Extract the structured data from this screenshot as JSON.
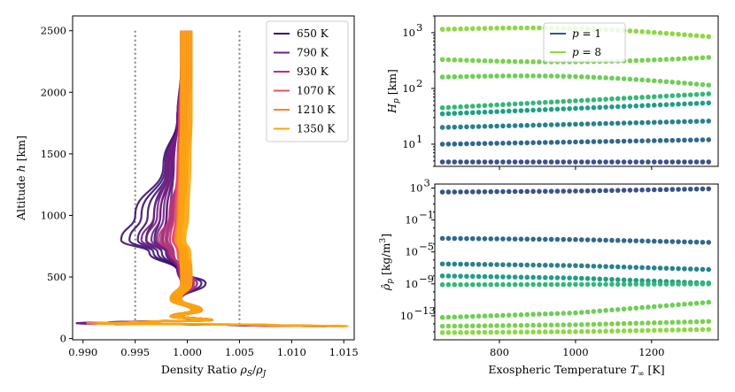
{
  "chart_data": [
    {
      "type": "line",
      "xlabel": "Density Ratio ρ_S/ρ_J",
      "ylabel": "Altitude h [km]",
      "xlim": [
        0.989,
        1.016
      ],
      "ylim": [
        -10,
        2620
      ],
      "xticks": [
        "0.990",
        "0.995",
        "1.000",
        "1.005",
        "1.010",
        "1.015"
      ],
      "yticks": [
        "0",
        "500",
        "1000",
        "1500",
        "2000",
        "2500"
      ],
      "reference_lines_x": [
        0.995,
        1.005
      ],
      "legend": {
        "placement": "top-right",
        "entries": [
          "650 K",
          "790 K",
          "930 K",
          "1070 K",
          "1210 K",
          "1350 K"
        ]
      },
      "series": [
        {
          "name": "650 K",
          "color": "#3b0f70",
          "spread": 1.0,
          "points": [
            [
              1.0,
              2500
            ],
            [
              1.0,
              2200
            ],
            [
              0.999,
              1800
            ],
            [
              0.998,
              1400
            ],
            [
              0.996,
              1000
            ],
            [
              0.995,
              800
            ],
            [
              0.997,
              700
            ],
            [
              0.999,
              550
            ],
            [
              1.001,
              450
            ],
            [
              0.999,
              320
            ],
            [
              1.001,
              230
            ],
            [
              0.999,
              180
            ],
            [
              1.002,
              150
            ],
            [
              0.993,
              130
            ],
            [
              0.99,
              125
            ],
            [
              1.005,
              110
            ],
            [
              1.012,
              100
            ]
          ]
        },
        {
          "name": "790 K",
          "color": "#711f81",
          "spread": 0.85,
          "points": [
            [
              1.0,
              2500
            ],
            [
              1.0,
              2200
            ],
            [
              0.999,
              1800
            ],
            [
              0.998,
              1400
            ],
            [
              0.997,
              1000
            ],
            [
              0.996,
              800
            ],
            [
              0.998,
              700
            ],
            [
              0.999,
              550
            ],
            [
              1.0,
              450
            ],
            [
              0.999,
              320
            ],
            [
              1.001,
              230
            ],
            [
              0.999,
              180
            ],
            [
              1.002,
              150
            ],
            [
              0.994,
              130
            ],
            [
              0.99,
              125
            ],
            [
              1.006,
              110
            ],
            [
              1.013,
              100
            ]
          ]
        },
        {
          "name": "930 K",
          "color": "#b5367a",
          "spread": 0.7,
          "points": [
            [
              1.0,
              2500
            ],
            [
              1.0,
              2200
            ],
            [
              0.9995,
              1800
            ],
            [
              0.999,
              1400
            ],
            [
              0.998,
              1000
            ],
            [
              0.997,
              800
            ],
            [
              0.998,
              700
            ],
            [
              0.9995,
              550
            ],
            [
              1.0005,
              450
            ],
            [
              0.999,
              320
            ],
            [
              1.001,
              230
            ],
            [
              0.999,
              180
            ],
            [
              1.002,
              150
            ],
            [
              0.994,
              130
            ],
            [
              0.991,
              125
            ],
            [
              1.006,
              110
            ],
            [
              1.013,
              100
            ]
          ]
        },
        {
          "name": "1070 K",
          "color": "#e55064",
          "spread": 0.55,
          "points": [
            [
              1.0,
              2500
            ],
            [
              1.0,
              2200
            ],
            [
              0.9995,
              1800
            ],
            [
              0.999,
              1400
            ],
            [
              0.9985,
              1000
            ],
            [
              0.998,
              800
            ],
            [
              0.999,
              700
            ],
            [
              1.0,
              550
            ],
            [
              1.0,
              450
            ],
            [
              0.999,
              320
            ],
            [
              1.001,
              230
            ],
            [
              0.999,
              180
            ],
            [
              1.002,
              150
            ],
            [
              0.995,
              130
            ],
            [
              0.991,
              125
            ],
            [
              1.007,
              110
            ],
            [
              1.014,
              100
            ]
          ]
        },
        {
          "name": "1210 K",
          "color": "#f7813d",
          "spread": 0.4,
          "points": [
            [
              1.0,
              2500
            ],
            [
              1.0,
              2200
            ],
            [
              1.0,
              1800
            ],
            [
              0.9995,
              1400
            ],
            [
              0.999,
              1000
            ],
            [
              0.9985,
              800
            ],
            [
              0.9995,
              700
            ],
            [
              1.0,
              550
            ],
            [
              1.0,
              450
            ],
            [
              0.999,
              320
            ],
            [
              1.001,
              230
            ],
            [
              0.999,
              180
            ],
            [
              1.002,
              150
            ],
            [
              0.995,
              130
            ],
            [
              0.991,
              125
            ],
            [
              1.008,
              110
            ],
            [
              1.015,
              100
            ]
          ]
        },
        {
          "name": "1350 K",
          "color": "#fca50a",
          "spread": 0.25,
          "points": [
            [
              1.0,
              2500
            ],
            [
              1.0,
              2200
            ],
            [
              1.0,
              1800
            ],
            [
              0.9998,
              1400
            ],
            [
              0.9995,
              1000
            ],
            [
              0.999,
              800
            ],
            [
              0.9998,
              700
            ],
            [
              1.0,
              550
            ],
            [
              1.0,
              450
            ],
            [
              0.999,
              320
            ],
            [
              1.001,
              230
            ],
            [
              0.999,
              180
            ],
            [
              1.002,
              150
            ],
            [
              0.995,
              130
            ],
            [
              0.992,
              125
            ],
            [
              1.008,
              110
            ],
            [
              1.015,
              100
            ]
          ]
        }
      ]
    },
    {
      "type": "scatter",
      "ylabel": "H_p [km]",
      "yscale": "log",
      "ylim": [
        4,
        2000
      ],
      "xlim": [
        630,
        1375
      ],
      "yticks": [
        "10^1",
        "10^2",
        "10^3"
      ],
      "legend": {
        "placement": "top-center",
        "entries": [
          "p = 1",
          "p = 8"
        ]
      },
      "x": [
        650,
        1350
      ],
      "series": [
        {
          "name": "p = 1",
          "color": "#3b528b",
          "start": 4.8,
          "end": 4.8,
          "mid": 0
        },
        {
          "name": "p = 2",
          "color": "#31688e",
          "start": 10.0,
          "end": 12.0,
          "mid": 0
        },
        {
          "name": "p = 3",
          "color": "#26828e",
          "start": 20.0,
          "end": 26.0,
          "mid": 0
        },
        {
          "name": "p = 4",
          "color": "#1f9e89",
          "start": 35.0,
          "end": 55.0,
          "mid": 0
        },
        {
          "name": "p = 5",
          "color": "#35b779",
          "start": 45.0,
          "end": 80.0,
          "mid": 0
        },
        {
          "name": "p = 6",
          "color": "#6ece58",
          "start": 160.0,
          "end": 115.0,
          "mid": 0.08
        },
        {
          "name": "p = 7",
          "color": "#7ad151",
          "start": 330.0,
          "end": 360.0,
          "mid": -0.06
        },
        {
          "name": "p = 8",
          "color": "#8fd744",
          "start": 1150.0,
          "end": 850.0,
          "mid": 0.08
        }
      ]
    },
    {
      "type": "scatter",
      "xlabel": "Exospheric Temperature T_∞ [K]",
      "ylabel": "ρ̂_p [kg/m^3]",
      "yscale": "log",
      "ylim_exp": [
        -16,
        3.5
      ],
      "xlim": [
        630,
        1375
      ],
      "xticks": [
        "800",
        "1000",
        "1200"
      ],
      "yticks": [
        "10^3",
        "10^-1",
        "10^-5",
        "10^-9",
        "10^-13"
      ],
      "x": [
        650,
        1350
      ],
      "series": [
        {
          "color": "#3b528b",
          "start_exp": 2.5,
          "end_exp": 2.9
        },
        {
          "color": "#31688e",
          "start_exp": -3.3,
          "end_exp": -3.8
        },
        {
          "color": "#26828e",
          "start_exp": -6.5,
          "end_exp": -7.2
        },
        {
          "color": "#1f9e89",
          "start_exp": -8.0,
          "end_exp": -8.9
        },
        {
          "color": "#35b779",
          "start_exp": -9.1,
          "end_exp": -9.0
        },
        {
          "color": "#6ece58",
          "start_exp": -13.2,
          "end_exp": -11.3
        },
        {
          "color": "#7ad151",
          "start_exp": -14.3,
          "end_exp": -13.7
        },
        {
          "color": "#8fd744",
          "start_exp": -15.1,
          "end_exp": -14.7
        }
      ]
    }
  ]
}
